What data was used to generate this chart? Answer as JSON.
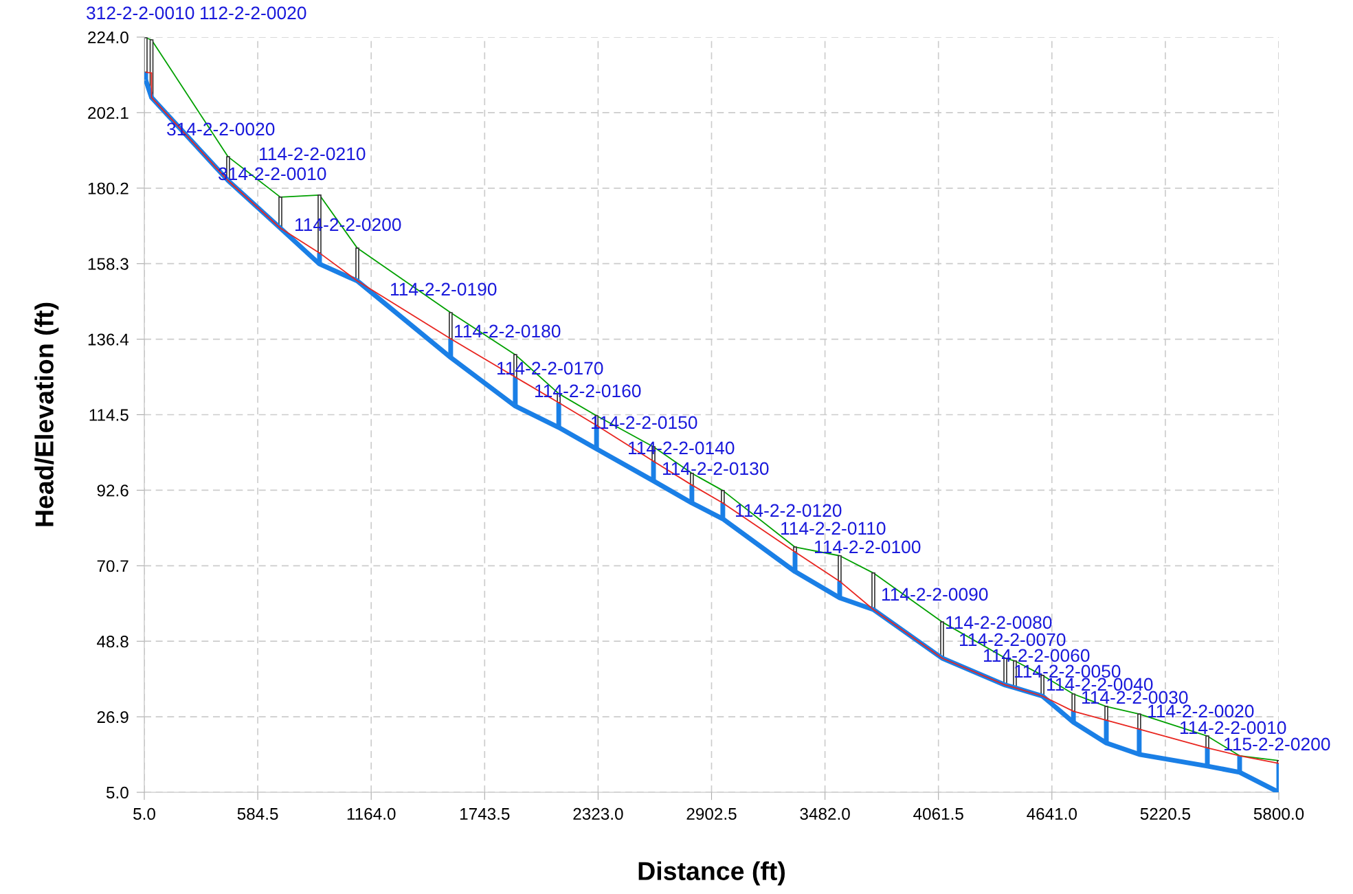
{
  "chart_data": {
    "type": "line",
    "xlabel": "Distance (ft)",
    "ylabel": "Head/Elevation (ft)",
    "xlim": [
      5.0,
      5800.0
    ],
    "xticks": [
      {
        "value": 5.0,
        "label": "5.0"
      },
      {
        "value": 584.5,
        "label": "584.5"
      },
      {
        "value": 1164.0,
        "label": "1164.0"
      },
      {
        "value": 1743.5,
        "label": "1743.5"
      },
      {
        "value": 2323.0,
        "label": "2323.0"
      },
      {
        "value": 2902.5,
        "label": "2902.5"
      },
      {
        "value": 3482.0,
        "label": "3482.0"
      },
      {
        "value": 4061.5,
        "label": "4061.5"
      },
      {
        "value": 4641.0,
        "label": "4641.0"
      },
      {
        "value": 5220.5,
        "label": "5220.5"
      },
      {
        "value": 5800.0,
        "label": "5800.0"
      }
    ],
    "ylim": [
      5.0,
      224.0
    ],
    "yticks": [
      {
        "value": 5.0,
        "label": "5.0"
      },
      {
        "value": 26.9,
        "label": "26.9"
      },
      {
        "value": 48.8,
        "label": "48.8"
      },
      {
        "value": 70.7,
        "label": "70.7"
      },
      {
        "value": 92.6,
        "label": "92.6"
      },
      {
        "value": 114.5,
        "label": "114.5"
      },
      {
        "value": 136.4,
        "label": "136.4"
      },
      {
        "value": 158.3,
        "label": "158.3"
      },
      {
        "value": 180.2,
        "label": "180.2"
      },
      {
        "value": 202.1,
        "label": "202.1"
      },
      {
        "value": 224.0,
        "label": "224.0"
      }
    ],
    "grid": true,
    "legend": false,
    "line_style": "solid",
    "marker": "none",
    "series": [
      {
        "type": "bar",
        "color": "#ffffff",
        "x": [
          12,
          42,
          433,
          700,
          900,
          1093,
          1570,
          1900,
          2122,
          2315,
          2606,
          2802,
          2960,
          3329,
          3557,
          3729,
          4080,
          4403,
          4452,
          4593,
          4751,
          4919,
          5087,
          5435,
          5600,
          5800
        ],
        "base": [
          213.8,
          206.5,
          182.4,
          168.6,
          161.4,
          153.3,
          136.5,
          125.4,
          118.0,
          111.4,
          101.0,
          94.1,
          88.9,
          74.7,
          66.2,
          58.0,
          43.9,
          36.1,
          35.3,
          32.9,
          28.5,
          25.9,
          23.3,
          17.9,
          null,
          13.4
        ],
        "values": [
          10.0,
          16.7,
          6.9,
          9.0,
          16.8,
          9.5,
          7.6,
          6.5,
          2.6,
          2.8,
          4.2,
          3.4,
          3.6,
          1.4,
          7.4,
          10.6,
          10.5,
          7.8,
          7.8,
          6.0,
          5.0,
          4.0,
          4.4,
          3.4,
          null,
          0.8
        ]
      },
      {
        "color": "#00a000",
        "x": [
          12,
          42,
          433,
          700,
          900,
          1093,
          1570,
          1900,
          2122,
          2315,
          2606,
          2802,
          2960,
          3329,
          3557,
          3729,
          4080,
          4403,
          4452,
          4593,
          4751,
          4919,
          5087,
          5435,
          5600,
          5800
        ],
        "values": [
          223.8,
          223.2,
          189.3,
          177.6,
          178.2,
          162.8,
          144.1,
          131.9,
          120.6,
          114.2,
          105.2,
          97.5,
          92.5,
          76.1,
          73.6,
          68.6,
          54.4,
          43.9,
          43.1,
          38.9,
          33.5,
          29.9,
          27.7,
          21.3,
          15.6,
          14.2
        ]
      },
      {
        "color": "#1a7fe6",
        "x": [
          12,
          42,
          433,
          700,
          900,
          1093,
          1570,
          1900,
          2122,
          2315,
          2606,
          2802,
          2960,
          3329,
          3557,
          3729,
          4080,
          4403,
          4452,
          4593,
          4751,
          4919,
          5087,
          5435,
          5600,
          5800
        ],
        "values": [
          211.6,
          206.5,
          182.4,
          168.6,
          158.2,
          153.3,
          131.1,
          117.0,
          110.8,
          104.6,
          95.3,
          88.9,
          84.3,
          69.0,
          61.4,
          58.0,
          43.9,
          36.1,
          35.3,
          32.9,
          25.3,
          19.3,
          16.0,
          12.6,
          10.8,
          5.0
        ],
        "errors": [
          [
            211.6,
            213.8
          ],
          null,
          null,
          null,
          [
            158.2,
            161.4
          ],
          null,
          [
            131.1,
            136.5
          ],
          [
            117.0,
            125.4
          ],
          [
            110.8,
            118.0
          ],
          [
            104.6,
            111.4
          ],
          [
            95.3,
            101.0
          ],
          [
            88.9,
            94.1
          ],
          [
            84.3,
            88.9
          ],
          [
            69.0,
            74.7
          ],
          [
            61.4,
            66.2
          ],
          null,
          null,
          null,
          null,
          null,
          [
            25.3,
            28.5
          ],
          [
            19.3,
            25.9
          ],
          [
            16.0,
            23.3
          ],
          [
            12.6,
            17.9
          ],
          [
            10.8,
            15.6
          ],
          [
            5.0,
            13.4
          ]
        ]
      },
      {
        "color": "#e8251f",
        "x": [
          12,
          42,
          42,
          433,
          700,
          900,
          1093,
          1570,
          1900,
          2122,
          2315,
          2606,
          2802,
          2960,
          3329,
          3557,
          3729,
          4080,
          4403,
          4452,
          4593,
          4751,
          4919,
          5087,
          5435,
          5600,
          5800
        ],
        "values": [
          213.8,
          213.6,
          206.5,
          182.4,
          168.6,
          161.4,
          153.3,
          136.5,
          125.4,
          118.0,
          111.4,
          101.0,
          94.1,
          88.9,
          74.7,
          66.2,
          58.0,
          43.9,
          36.1,
          35.3,
          32.9,
          28.5,
          25.9,
          23.3,
          17.9,
          15.6,
          13.4
        ]
      }
    ],
    "annotations": [
      "312-2-2-0010",
      "112-2-2-0020",
      "314-2-2-0020",
      "314-2-2-0010",
      "114-2-2-0210",
      "114-2-2-0200",
      "114-2-2-0190",
      "114-2-2-0180",
      "114-2-2-0170",
      "114-2-2-0160",
      "114-2-2-0150",
      "114-2-2-0140",
      "114-2-2-0130",
      "114-2-2-0120",
      "114-2-2-0110",
      "114-2-2-0100",
      "114-2-2-0090",
      "114-2-2-0080",
      "114-2-2-0070",
      "114-2-2-0060",
      "114-2-2-0050",
      "114-2-2-0040",
      "114-2-2-0030",
      "114-2-2-0020",
      "114-2-2-0010",
      "115-2-2-0200"
    ]
  }
}
